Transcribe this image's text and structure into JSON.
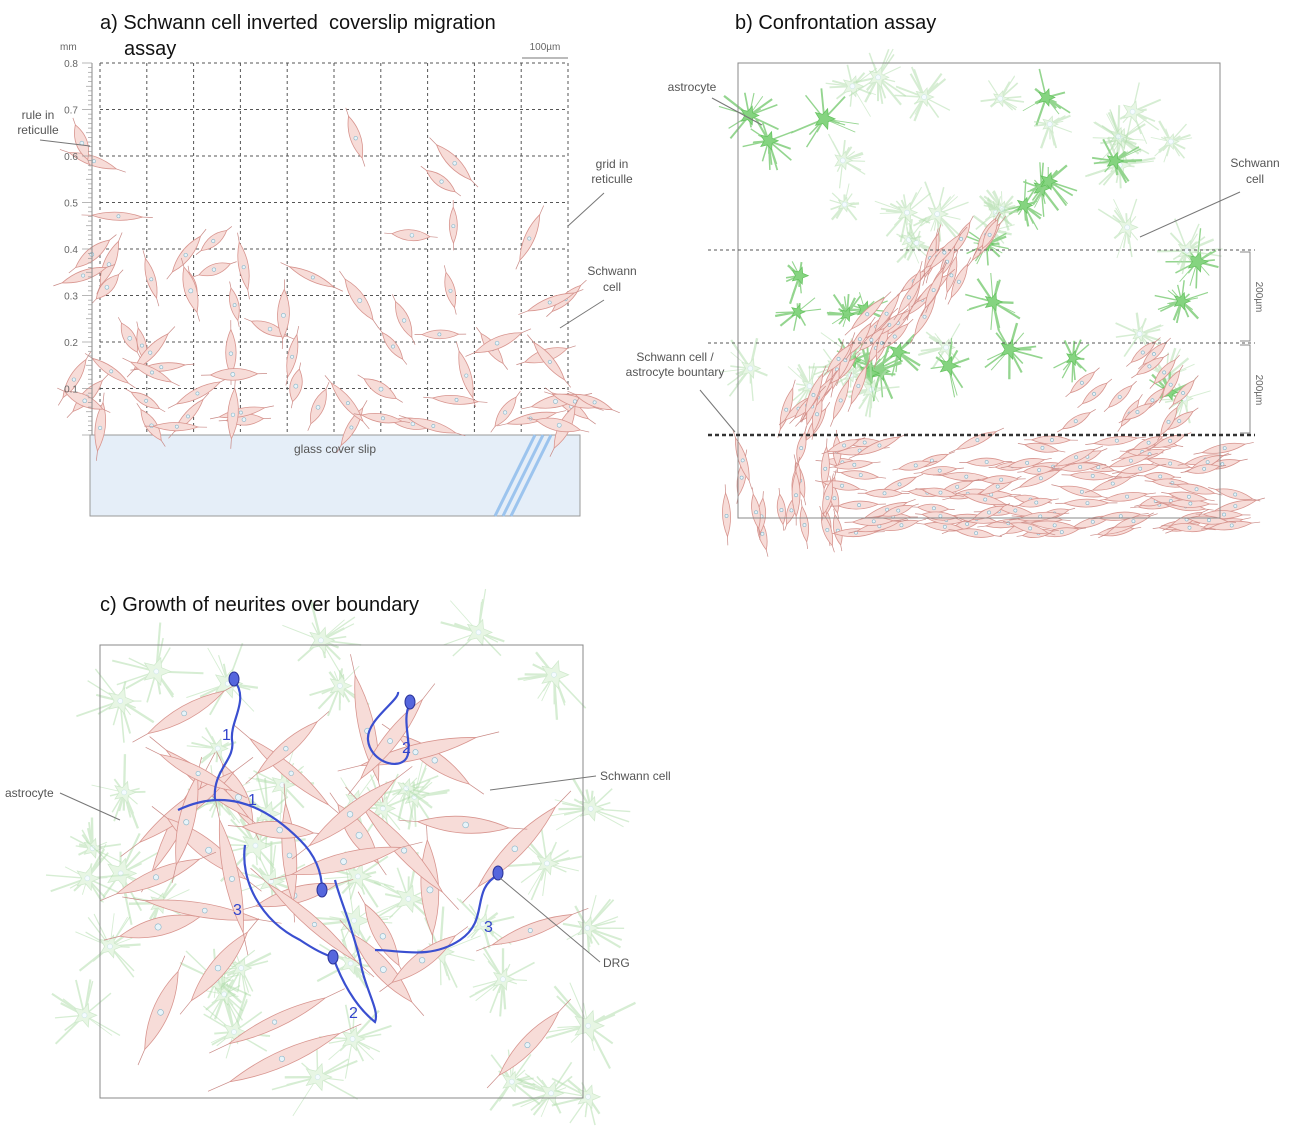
{
  "panel_a": {
    "title_lines": [
      "a) Schwann cell inverted  coverslip migration",
      "assay"
    ],
    "axis_unit": "mm",
    "axis_ticks": [
      "0.8",
      "0.7",
      "0.6",
      "0.5",
      "0.4",
      "0.3",
      "0.2",
      "0.1"
    ],
    "scale_bar": "100µm",
    "rule_label": [
      "rule in",
      "reticulle"
    ],
    "grid_label": [
      "grid in",
      "reticulle"
    ],
    "schwann_label": [
      "Schwann",
      "cell"
    ],
    "cover_slip": "glass cover slip"
  },
  "panel_b": {
    "title": "b) Confrontation assay",
    "astrocyte_label": "astrocyte",
    "schwann_label": [
      "Schwann",
      "cell"
    ],
    "boundary_label": [
      "Schwann cell /",
      "astrocyte bountary"
    ],
    "scale_labels": [
      "200µm",
      "200µm"
    ]
  },
  "panel_c": {
    "title": "c) Growth of neurites over boundary",
    "astrocyte_label": "astrocyte",
    "schwann_label": "Schwann cell",
    "drg_label": "DRG",
    "neurite_numbers": [
      "1",
      "1",
      "2",
      "2",
      "3",
      "3"
    ]
  }
}
